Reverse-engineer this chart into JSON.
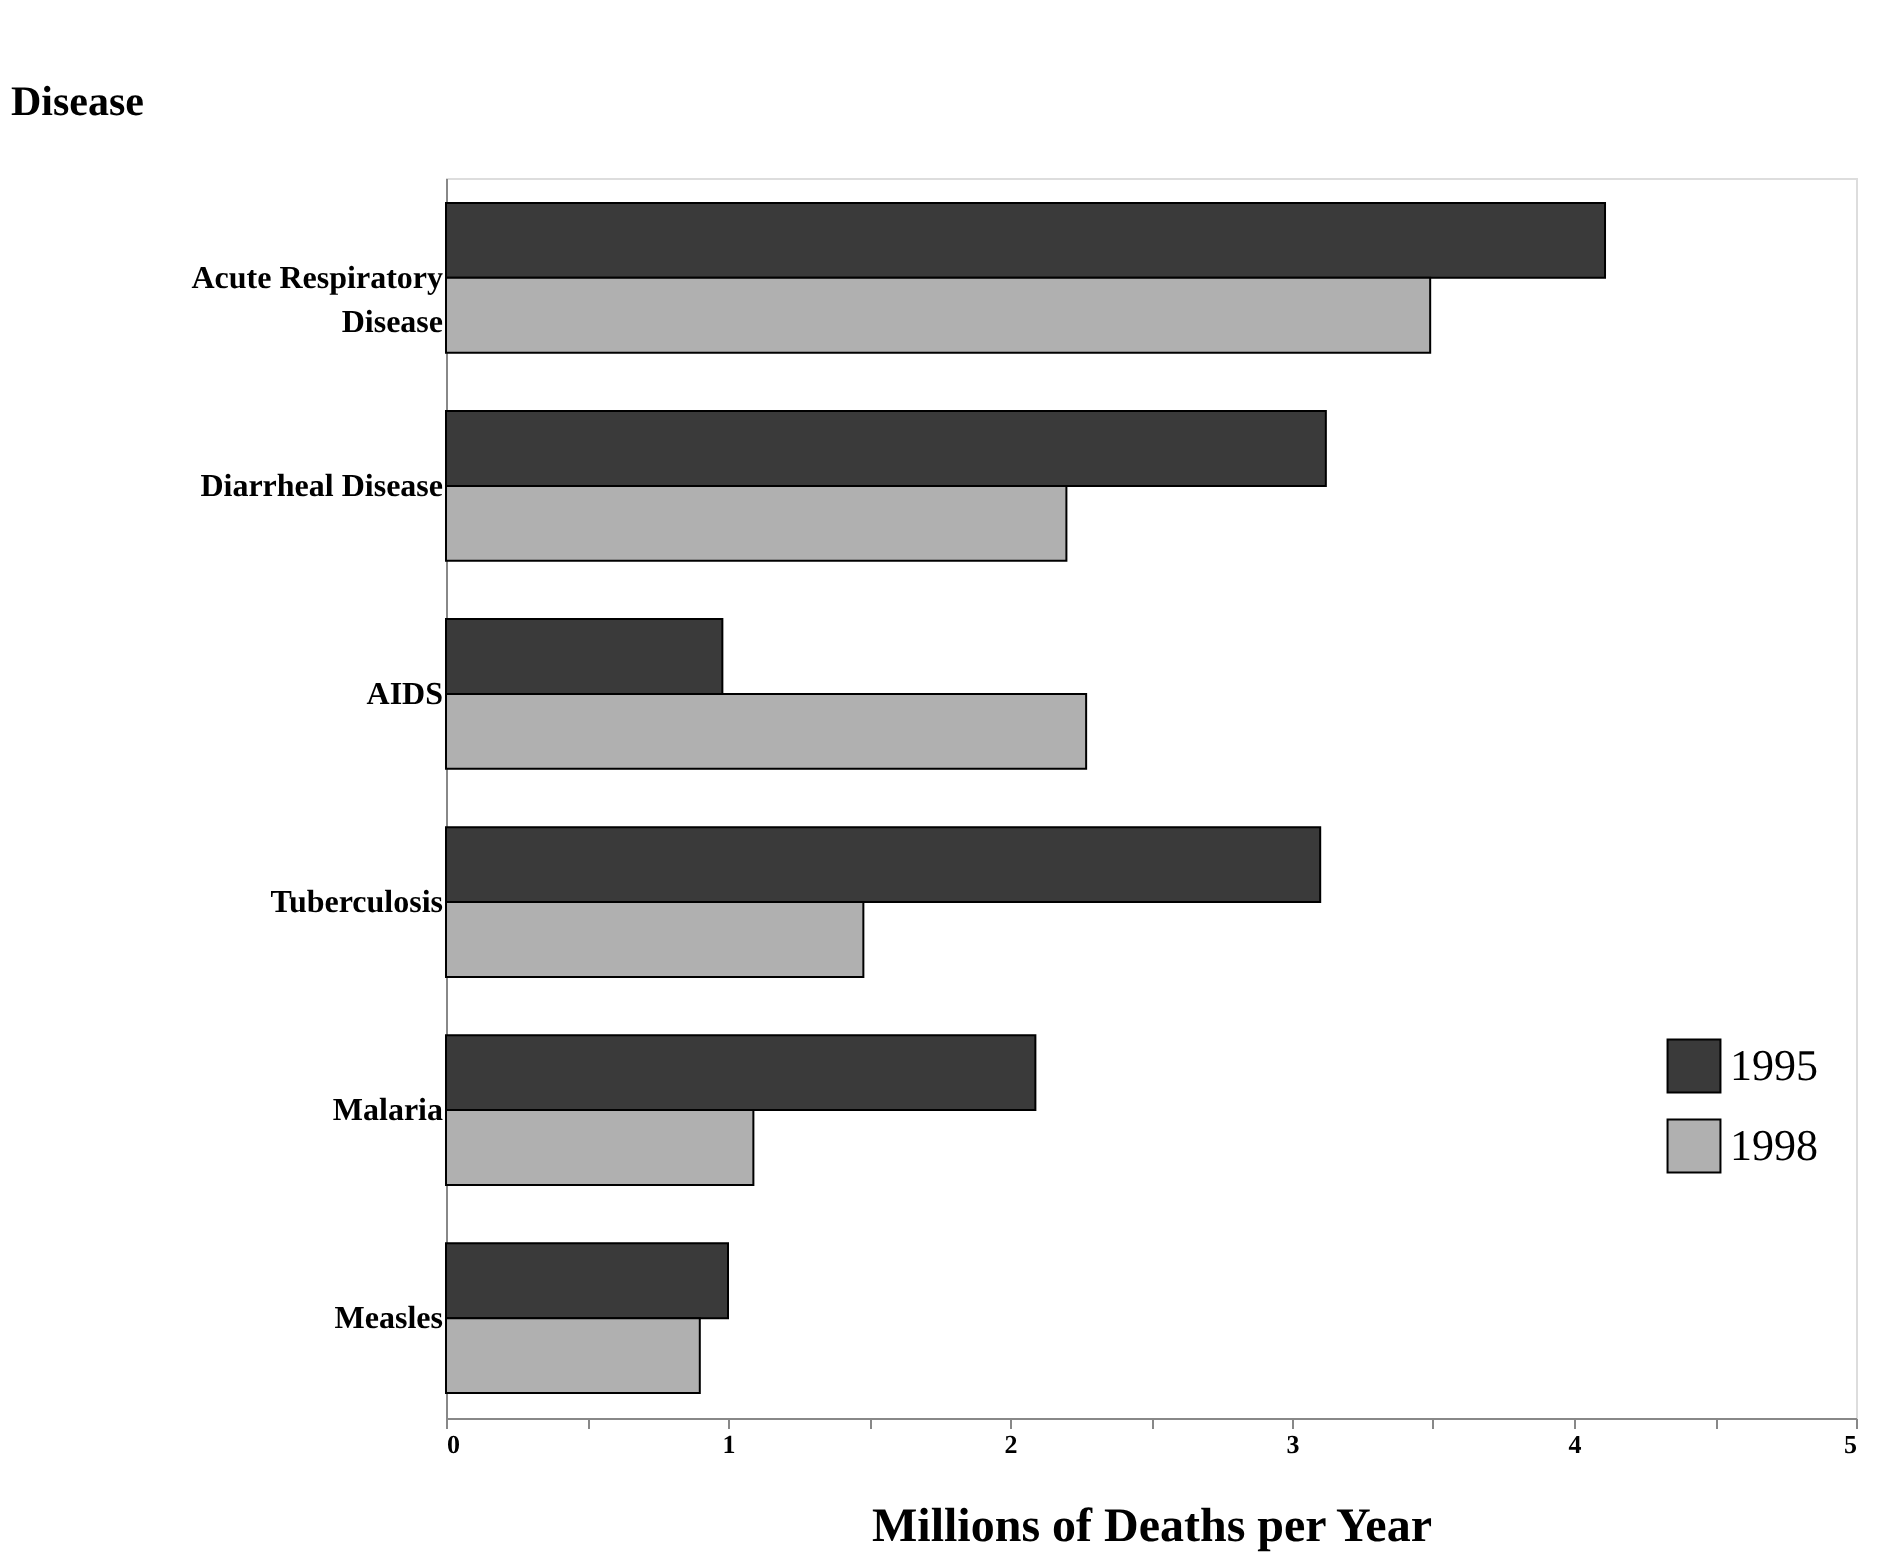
{
  "chart_data": {
    "type": "bar",
    "orientation": "horizontal",
    "categories": [
      "Acute Respiratory Disease",
      "Diarrheal Disease",
      "AIDS",
      "Tuberculosis",
      "Malaria",
      "Measles"
    ],
    "series": [
      {
        "name": "1995",
        "color": "#3a3a3a",
        "values": [
          4.11,
          3.12,
          0.98,
          3.1,
          2.09,
          1.0
        ]
      },
      {
        "name": "1998",
        "color": "#b0b0b0",
        "values": [
          3.49,
          2.2,
          2.27,
          1.48,
          1.09,
          0.9
        ]
      }
    ],
    "xlim": [
      0,
      5
    ],
    "xticks": [
      0,
      {
        "value": 0.5,
        "label": null
      },
      1,
      {
        "value": 1.5,
        "label": null
      },
      2,
      {
        "value": 2.5,
        "label": null
      },
      3,
      {
        "value": 3.5,
        "label": null
      },
      4,
      {
        "value": 4.5,
        "label": null
      },
      5
    ],
    "xlabel": "Millions of Deaths per Year",
    "ylabel": "Disease",
    "legend": "right",
    "grid": false
  }
}
